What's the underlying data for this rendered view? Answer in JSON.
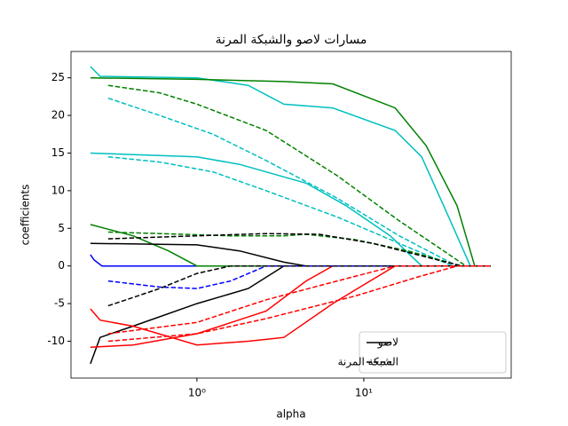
{
  "chart_data": {
    "type": "line",
    "title": "مسارات لاصو والشبكة المرنة",
    "x_label": "alpha",
    "y_label": "coefficients",
    "xscale": "log",
    "xlim": [
      0.176,
      76.4
    ],
    "xticks": [
      {
        "value": 1,
        "label": "10⁰"
      },
      {
        "value": 10,
        "label": "10¹"
      }
    ],
    "ylim": [
      -14.9,
      28.5
    ],
    "yticks": [
      -10,
      -5,
      0,
      5,
      10,
      15,
      20,
      25
    ],
    "legend_loc": "lower right",
    "legend": [
      {
        "label": "لاصو",
        "style": "solid"
      },
      {
        "label": "الشبكة المرنة",
        "style": "dashed"
      }
    ],
    "series": [
      {
        "style": "solid",
        "color": "#0000ff",
        "x": [
          0.23,
          0.242,
          0.27,
          57.6
        ],
        "values": [
          1.5,
          0.8,
          0,
          0
        ]
      },
      {
        "style": "solid",
        "color": "#00bfbf",
        "x": [
          0.23,
          0.263,
          1,
          2.03,
          3.32,
          6.51,
          15.4,
          22.2,
          30.1,
          43.5,
          57.6
        ],
        "values": [
          26.5,
          25.2,
          25,
          24,
          21.5,
          21,
          18,
          14.5,
          8,
          0,
          0
        ]
      },
      {
        "style": "solid",
        "color": "#008000",
        "x": [
          0.23,
          1,
          3.32,
          6.51,
          15.4,
          23.6,
          36.2,
          46.2,
          57.6
        ],
        "values": [
          25,
          24.8,
          24.5,
          24.2,
          21,
          16,
          8,
          0,
          0
        ]
      },
      {
        "style": "solid",
        "color": "#00bfbf",
        "x": [
          0.23,
          1,
          1.8,
          4.51,
          7.83,
          14.4,
          22.2,
          57.6
        ],
        "values": [
          15,
          14.5,
          13.5,
          11,
          8,
          4,
          0,
          0
        ]
      },
      {
        "style": "solid",
        "color": "#008000",
        "x": [
          0.23,
          0.414,
          0.676,
          1,
          57.6
        ],
        "values": [
          5.5,
          4,
          2,
          0,
          0
        ]
      },
      {
        "style": "solid",
        "color": "#000000",
        "x": [
          0.23,
          1,
          1.8,
          3.32,
          4.51,
          57.6
        ],
        "values": [
          3,
          2.8,
          2,
          0.5,
          0,
          0
        ]
      },
      {
        "style": "solid",
        "color": "#000000",
        "x": [
          0.23,
          0.263,
          0.414,
          1,
          2.03,
          3.32,
          57.6
        ],
        "values": [
          -13,
          -9.5,
          -8,
          -5,
          -3,
          0,
          0
        ]
      },
      {
        "style": "solid",
        "color": "#ff0000",
        "x": [
          0.23,
          0.263,
          0.414,
          1,
          2.03,
          3.32,
          6.51,
          10,
          15.4,
          57.6
        ],
        "values": [
          -5.7,
          -7.2,
          -8,
          -10.5,
          -10,
          -9.5,
          -5,
          -2.5,
          0,
          0
        ]
      },
      {
        "style": "solid",
        "color": "#ff0000",
        "x": [
          0.23,
          0.414,
          1,
          2.6,
          4.51,
          6.51,
          57.6
        ],
        "values": [
          -10.8,
          -10.5,
          -9,
          -6,
          -2,
          0,
          0
        ]
      },
      {
        "style": "dashed",
        "color": "#008000",
        "x": [
          0.294,
          0.598,
          1,
          2.6,
          6.92,
          16.3,
          40.9,
          57.6
        ],
        "values": [
          24,
          23,
          21.5,
          18,
          12,
          6,
          0,
          0
        ]
      },
      {
        "style": "dashed",
        "color": "#00bfbf",
        "x": [
          0.294,
          0.598,
          1.25,
          2.6,
          6.92,
          16.3,
          36.2,
          57.6
        ],
        "values": [
          22.3,
          20,
          17.5,
          14,
          9,
          4,
          0,
          0
        ]
      },
      {
        "style": "dashed",
        "color": "#00bfbf",
        "x": [
          0.294,
          0.598,
          1.25,
          2.6,
          6.92,
          16.3,
          34.0,
          57.6
        ],
        "values": [
          14.5,
          13.8,
          12.5,
          10,
          6.5,
          3,
          0,
          0
        ]
      },
      {
        "style": "dashed",
        "color": "#008000",
        "x": [
          0.294,
          0.598,
          1.59,
          3.32,
          4.51,
          8.85,
          18.4,
          38.5,
          57.6
        ],
        "values": [
          4.5,
          4.3,
          4,
          4,
          4.2,
          3.5,
          2,
          0,
          0
        ]
      },
      {
        "style": "dashed",
        "color": "#000000",
        "x": [
          0.294,
          1,
          2.6,
          5.42,
          11.3,
          20.8,
          38.5,
          57.6
        ],
        "values": [
          3.6,
          4,
          4.3,
          4.2,
          3,
          1.5,
          0,
          0
        ]
      },
      {
        "style": "dashed",
        "color": "#0000ff",
        "x": [
          0.294,
          0.598,
          1,
          1.59,
          2.6,
          57.6
        ],
        "values": [
          -2,
          -2.8,
          -3,
          -2,
          0,
          0
        ]
      },
      {
        "style": "dashed",
        "color": "#000000",
        "x": [
          0.294,
          0.598,
          1,
          1.59,
          57.6
        ],
        "values": [
          -5.3,
          -3,
          -1,
          0,
          0
        ]
      },
      {
        "style": "dashed",
        "color": "#ff0000",
        "x": [
          0.294,
          1,
          2.6,
          6.92,
          15.4,
          57.6
        ],
        "values": [
          -9,
          -7.5,
          -4.5,
          -2,
          0,
          0
        ]
      },
      {
        "style": "dashed",
        "color": "#ff0000",
        "x": [
          0.294,
          1,
          2.6,
          8.85,
          20.8,
          36.2,
          57.6
        ],
        "values": [
          -10,
          -9,
          -7,
          -4,
          -1.5,
          0,
          0
        ]
      }
    ]
  }
}
